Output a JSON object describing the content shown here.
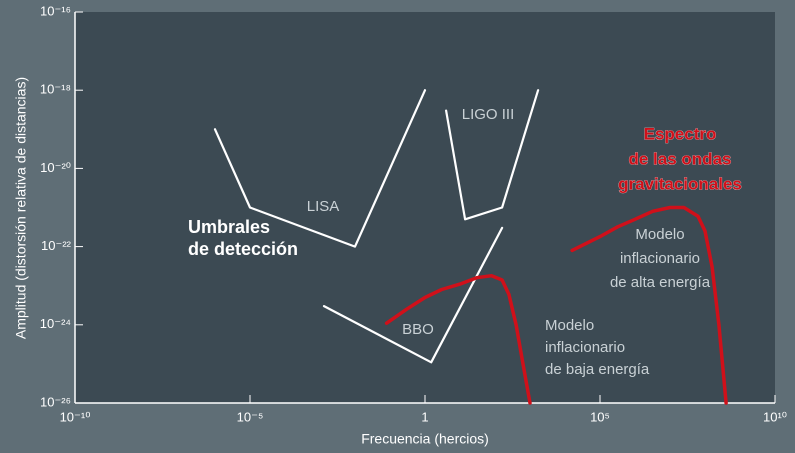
{
  "chart_data": {
    "type": "line",
    "xlabel": "Frecuencia (hercios)",
    "ylabel": "Amplitud (distorsión relativa de distancias)",
    "log_x": true,
    "log_y": true,
    "xlim": [
      1e-10,
      10000000000.0
    ],
    "xticks": [
      {
        "value": 1e-10,
        "label": "10⁻¹⁰"
      },
      {
        "value": 1e-05,
        "label": "10⁻⁵"
      },
      1,
      {
        "value": 100000.0,
        "label": "10⁵"
      },
      {
        "value": 10000000000.0,
        "label": "10¹⁰"
      }
    ],
    "ylim": [
      1e-26,
      1e-16
    ],
    "yticks": [
      {
        "value": 1e-26,
        "label": "10⁻²⁶"
      },
      {
        "value": 1e-24,
        "label": "10⁻²⁴"
      },
      {
        "value": 1e-22,
        "label": "10⁻²²"
      },
      {
        "value": 1e-20,
        "label": "10⁻²⁰"
      },
      {
        "value": 1e-18,
        "label": "10⁻¹⁸"
      },
      {
        "value": 1e-16,
        "label": "10⁻¹⁶"
      }
    ],
    "series": [
      {
        "name": "LISA",
        "color": "#ffffff",
        "x": [
          1e-06,
          1e-05,
          0.01,
          1
        ],
        "values": [
          1e-19,
          1e-21,
          1e-22,
          1e-18
        ]
      },
      {
        "name": "LIGO III",
        "color": "#ffffff",
        "x": [
          4,
          14,
          160,
          1700
        ],
        "values": [
          3e-19,
          5e-22,
          1e-21,
          1e-18
        ]
      },
      {
        "name": "BBO",
        "color": "#ffffff",
        "x": [
          0.0013,
          1.5,
          160
        ],
        "values": [
          3e-24,
          1.1e-25,
          3e-22
        ]
      },
      {
        "name": "Modelo inflacionario de baja energía",
        "color": "#d0101a",
        "x": [
          0.08,
          0.3,
          1,
          3,
          10,
          30,
          80,
          160,
          250,
          400,
          630,
          1000
        ],
        "values": [
          1.1e-24,
          2.5e-24,
          5e-24,
          8e-24,
          1.1e-23,
          1.6e-23,
          1.8e-23,
          1.4e-23,
          6e-24,
          1e-24,
          1e-25,
          1e-26
        ]
      },
      {
        "name": "Modelo inflacionario de alta energía",
        "color": "#d0101a",
        "x": [
          16000,
          100000,
          320000,
          1000000,
          3200000,
          10000000,
          25000000,
          63000000,
          100000000,
          160000000,
          250000000,
          400000000
        ],
        "values": [
          8e-23,
          1.8e-22,
          3.2e-22,
          5e-22,
          8e-22,
          1e-21,
          1e-21,
          6e-22,
          2.5e-22,
          3e-23,
          1e-24,
          1e-26
        ]
      }
    ],
    "annotations": [
      {
        "text": [
          "LISA"
        ]
      },
      {
        "text": [
          "LIGO III"
        ]
      },
      {
        "text": [
          "BBO"
        ]
      },
      {
        "text": [
          "Umbrales",
          "de detección"
        ]
      },
      {
        "text": [
          "Espectro",
          "de las ondas",
          "gravitacionales"
        ]
      },
      {
        "text": [
          "Modelo",
          "inflacionario",
          "de alta energía"
        ]
      },
      {
        "text": [
          "Modelo",
          "inflacionario",
          "de baja energía"
        ]
      }
    ]
  }
}
